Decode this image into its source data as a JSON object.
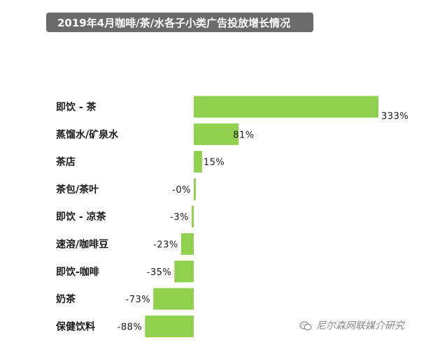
{
  "header": {
    "title": "2019年4月咖啡/茶/水各子小类广告投放增长情况"
  },
  "watermark": {
    "text": "尼尔森网联媒介研究",
    "icon": "wechat-icon"
  },
  "colors": {
    "bar": "#92d050",
    "title_bg": "#6b6b6b"
  },
  "chart_data": {
    "type": "bar",
    "orientation": "horizontal",
    "title": "2019年4月咖啡/茶/水各子小类广告投放增长情况",
    "categories": [
      "即饮 - 茶",
      "蒸馏水/矿泉水",
      "茶店",
      "茶包/茶叶",
      "即饮 - 凉茶",
      "速溶/咖啡豆",
      "即饮-咖啡",
      "奶茶",
      "保健饮料"
    ],
    "values": [
      333,
      81,
      15,
      0,
      -3,
      -23,
      -35,
      -73,
      -88
    ],
    "value_labels": [
      "333%",
      "81%",
      "15%",
      "-0%",
      "-3%",
      "-23%",
      "-35%",
      "-73%",
      "-88%"
    ],
    "unit": "%",
    "grid": false,
    "legend": "none"
  }
}
